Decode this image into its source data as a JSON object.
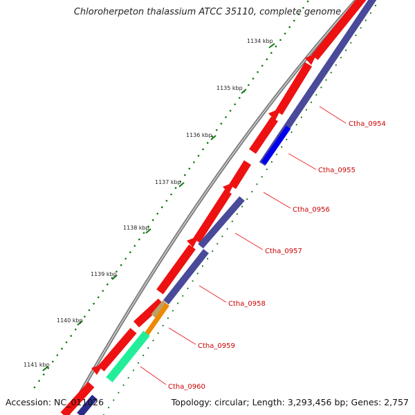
{
  "header": {
    "title": "Chloroherpeton thalassium ATCC 35110, complete genome"
  },
  "footer": {
    "accession": "Accession: NC_011026",
    "summary": "Topology: circular; Length: 3,293,456 bp; Genes: 2,757"
  },
  "ruler": {
    "ticks": [
      "1134 kbp",
      "1135 kbp",
      "1136 kbp",
      "1137 kbp",
      "1138 kbp",
      "1139 kbp",
      "1140 kbp",
      "1141 kbp"
    ]
  },
  "genes": [
    {
      "locus": "Ctha_0954",
      "color": "#cc0000"
    },
    {
      "locus": "Ctha_0955",
      "color": "#cc0000"
    },
    {
      "locus": "Ctha_0956",
      "color": "#cc0000"
    },
    {
      "locus": "Ctha_0957",
      "color": "#cc0000"
    },
    {
      "locus": "Ctha_0958",
      "color": "#cc0000"
    },
    {
      "locus": "Ctha_0959",
      "color": "#cc0000"
    },
    {
      "locus": "Ctha_0960",
      "color": "#cc0000"
    }
  ],
  "colors": {
    "backbone": "#8a8a8a",
    "forward_cds": "#ee1111",
    "reverse_cds": "#4a4a9a",
    "highlight_blue": "#0000ee",
    "highlight_orange": "#ee8800",
    "highlight_green": "#22ee99",
    "highlight_olive": "#bba166",
    "tick_green": "#117711",
    "label_line": "#ee2222"
  }
}
